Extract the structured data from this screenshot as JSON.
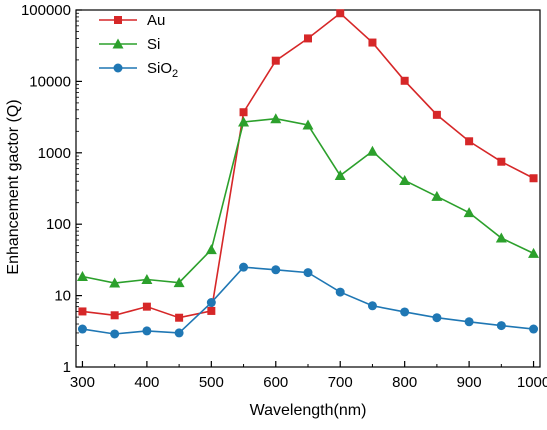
{
  "chart_data": {
    "type": "line",
    "title": "",
    "xlabel": "Wavelength(nm)",
    "ylabel": "Enhancement gactor (Q)",
    "xlim": [
      290,
      1010
    ],
    "ylim": [
      1,
      100000
    ],
    "yscale": "log",
    "grid": false,
    "legend_position": "top-left",
    "x_ticks": [
      300,
      400,
      500,
      600,
      700,
      800,
      900,
      1000
    ],
    "x_tick_labels": [
      "300",
      "400",
      "500",
      "600",
      "700",
      "800",
      "900",
      "1000"
    ],
    "y_ticks": [
      1,
      10,
      100,
      1000,
      10000,
      100000
    ],
    "y_tick_labels": [
      "1",
      "10",
      "100",
      "1000",
      "10000",
      "100000"
    ],
    "x": [
      300,
      350,
      400,
      450,
      500,
      550,
      600,
      650,
      700,
      750,
      800,
      850,
      900,
      950,
      1000
    ],
    "series": [
      {
        "name": "Au",
        "marker": "square",
        "color": "#d62728",
        "values": [
          6.0,
          5.3,
          7.0,
          4.9,
          6.1,
          3700,
          19500,
          40000,
          90000,
          35000,
          10200,
          3400,
          1450,
          750,
          440
        ]
      },
      {
        "name": "Si",
        "label_parts": [
          "Si",
          ""
        ],
        "marker": "triangle",
        "color": "#2ca02c",
        "values": [
          18.5,
          15.0,
          16.8,
          15.2,
          44,
          2700,
          3000,
          2450,
          480,
          1050,
          410,
          245,
          145,
          64,
          39
        ]
      },
      {
        "name": "SiO2",
        "label_parts": [
          "SiO",
          "2"
        ],
        "marker": "circle",
        "color": "#1f77b4",
        "values": [
          3.4,
          2.9,
          3.2,
          3.0,
          8.0,
          25,
          23,
          21,
          11.2,
          7.2,
          5.9,
          4.9,
          4.3,
          3.8,
          3.4
        ]
      }
    ]
  }
}
